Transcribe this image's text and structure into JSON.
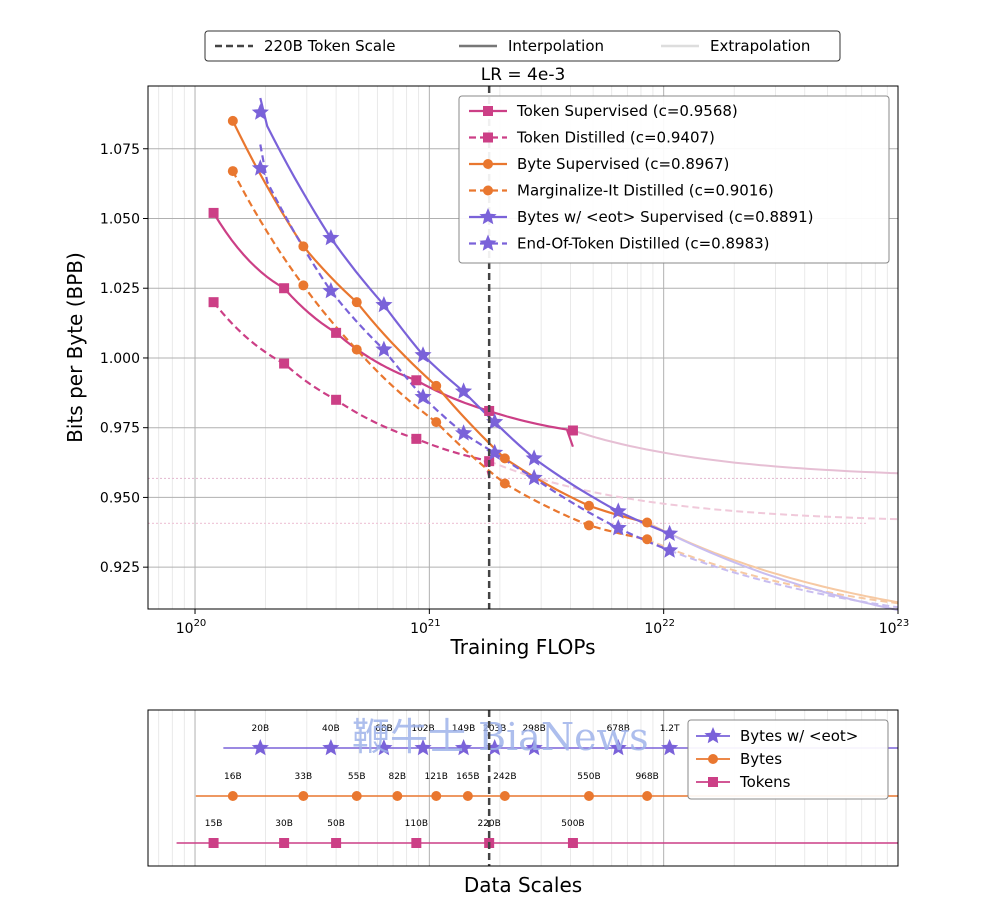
{
  "legend_top": {
    "items": [
      {
        "label": "220B Token Scale",
        "style": "dashed",
        "color": "#444444"
      },
      {
        "label": "Interpolation",
        "style": "solid",
        "color": "#777777"
      },
      {
        "label": "Extrapolation",
        "style": "solid",
        "color": "#dddddd"
      }
    ]
  },
  "watermark": "鞭牛士 BiaNews",
  "chart_data": [
    {
      "type": "line",
      "title": "LR = 4e-3",
      "xlabel": "Training FLOPs",
      "ylabel": "Bits per Byte (BPB)",
      "xscale": "log",
      "xlim": [
        6.3e+19,
        1e+23
      ],
      "ylim": [
        0.91,
        1.0975
      ],
      "xticks": [
        {
          "value": 1e+20,
          "base": "10",
          "exp": "20"
        },
        {
          "value": 1e+21,
          "base": "10",
          "exp": "21"
        },
        {
          "value": 1e+22,
          "base": "10",
          "exp": "22"
        },
        {
          "value": 1e+23,
          "base": "10",
          "exp": "23"
        }
      ],
      "yticks": [
        0.925,
        0.95,
        0.975,
        1.0,
        1.025,
        1.05,
        1.075
      ],
      "ytick_labels": [
        "0.925",
        "0.950",
        "0.975",
        "1.000",
        "1.025",
        "1.050",
        "1.075"
      ],
      "grid": true,
      "legend_position": "top-right",
      "vline_x": 1.8e+21,
      "series": [
        {
          "name": "Token Supervised  (c=0.9568)",
          "color": "#cc3f86",
          "dash": "solid",
          "marker": "square",
          "points": [
            [
              1.2e+20,
              1.052
            ],
            [
              2.4e+20,
              1.025
            ],
            [
              4e+20,
              1.009
            ],
            [
              8.8e+20,
              0.992
            ],
            [
              1.8e+21,
              0.981
            ],
            [
              4.1e+21,
              0.974
            ]
          ],
          "asymptote": 0.9568,
          "curve_exp": 0.72,
          "ext_color": "#e6bfd4"
        },
        {
          "name": "Token Distilled  (c=0.9407)",
          "color": "#cc3f86",
          "dash": "dashed",
          "marker": "square",
          "points": [
            [
              1.2e+20,
              1.02
            ],
            [
              2.4e+20,
              0.998
            ],
            [
              4e+20,
              0.985
            ],
            [
              8.8e+20,
              0.971
            ],
            [
              1.8e+21,
              0.963
            ]
          ],
          "asymptote": 0.9407,
          "curve_exp": 0.68,
          "ext_color": "#f0c9da"
        },
        {
          "name": "Byte Supervised  (c=0.8967)",
          "color": "#e9772f",
          "dash": "solid",
          "marker": "circle",
          "points": [
            [
              1.45e+20,
              1.085
            ],
            [
              2.9e+20,
              1.04
            ],
            [
              4.9e+20,
              1.02
            ],
            [
              1.07e+21,
              0.99
            ],
            [
              2.1e+21,
              0.964
            ],
            [
              4.8e+21,
              0.947
            ],
            [
              8.5e+21,
              0.941
            ]
          ],
          "asymptote": 0.8967,
          "curve_exp": 0.4,
          "ext_color": "#f6c9a3"
        },
        {
          "name": "Marginalize-It Distilled  (c=0.9016)",
          "color": "#e9772f",
          "dash": "dashed",
          "marker": "circle",
          "points": [
            [
              1.45e+20,
              1.067
            ],
            [
              2.9e+20,
              1.026
            ],
            [
              4.9e+20,
              1.003
            ],
            [
              1.07e+21,
              0.977
            ],
            [
              2.1e+21,
              0.955
            ],
            [
              4.8e+21,
              0.94
            ],
            [
              8.5e+21,
              0.935
            ]
          ],
          "asymptote": 0.9016,
          "curve_exp": 0.45,
          "ext_color": "#f6c9a3"
        },
        {
          "name": "Bytes w/ <eot> Supervised  (c=0.8891)",
          "color": "#7a62d9",
          "dash": "solid",
          "marker": "star",
          "points": [
            [
              1.9e+20,
              1.088
            ],
            [
              3.8e+20,
              1.043
            ],
            [
              6.4e+20,
              1.019
            ],
            [
              9.4e+20,
              1.001
            ],
            [
              1.4e+21,
              0.988
            ],
            [
              1.9e+21,
              0.977
            ],
            [
              2.8e+21,
              0.964
            ],
            [
              6.4e+21,
              0.945
            ],
            [
              1.06e+22,
              0.937
            ]
          ],
          "asymptote": 0.8891,
          "curve_exp": 0.37,
          "ext_color": "#c8bdf0"
        },
        {
          "name": "End-Of-Token Distilled  (c=0.8983)",
          "color": "#7a62d9",
          "dash": "dashed",
          "marker": "star",
          "points": [
            [
              1.9e+20,
              1.068
            ],
            [
              3.8e+20,
              1.024
            ],
            [
              6.4e+20,
              1.003
            ],
            [
              9.4e+20,
              0.986
            ],
            [
              1.4e+21,
              0.973
            ],
            [
              1.9e+21,
              0.966
            ],
            [
              2.8e+21,
              0.957
            ],
            [
              6.4e+21,
              0.939
            ],
            [
              1.06e+22,
              0.931
            ]
          ],
          "asymptote": 0.8983,
          "curve_exp": 0.43,
          "ext_color": "#c8bdf0"
        }
      ]
    },
    {
      "type": "scatter",
      "xlabel": "Data Scales",
      "xscale": "log",
      "xlim": [
        6.3e+19,
        1e+23
      ],
      "legend_position": "top-right",
      "vline_x": 1.8e+21,
      "series": [
        {
          "name": "Bytes w/ <eot>",
          "color": "#7a62d9",
          "marker": "star",
          "level": 2,
          "points": [
            {
              "x": 1.9e+20,
              "label": "20B"
            },
            {
              "x": 3.8e+20,
              "label": "40B"
            },
            {
              "x": 6.4e+20,
              "label": "68B"
            },
            {
              "x": 9.4e+20,
              "label": "102B"
            },
            {
              "x": 1.4e+21,
              "label": "149B"
            },
            {
              "x": 1.9e+21,
              "label": "203B"
            },
            {
              "x": 2.8e+21,
              "label": "298B"
            },
            {
              "x": 6.4e+21,
              "label": "678B"
            },
            {
              "x": 1.06e+22,
              "label": "1.2T"
            }
          ]
        },
        {
          "name": "Bytes",
          "color": "#e9772f",
          "marker": "circle",
          "level": 1,
          "points": [
            {
              "x": 1.45e+20,
              "label": "16B"
            },
            {
              "x": 2.9e+20,
              "label": "33B"
            },
            {
              "x": 4.9e+20,
              "label": "55B"
            },
            {
              "x": 7.3e+20,
              "label": "82B"
            },
            {
              "x": 1.07e+21,
              "label": "121B"
            },
            {
              "x": 1.46e+21,
              "label": "165B"
            },
            {
              "x": 2.1e+21,
              "label": "242B"
            },
            {
              "x": 4.8e+21,
              "label": "550B"
            },
            {
              "x": 8.5e+21,
              "label": "968B"
            }
          ]
        },
        {
          "name": "Tokens",
          "color": "#cc3f86",
          "marker": "square",
          "level": 0,
          "points": [
            {
              "x": 1.2e+20,
              "label": "15B"
            },
            {
              "x": 2.4e+20,
              "label": "30B"
            },
            {
              "x": 4e+20,
              "label": "50B"
            },
            {
              "x": 8.8e+20,
              "label": "110B"
            },
            {
              "x": 1.8e+21,
              "label": "220B"
            },
            {
              "x": 4.1e+21,
              "label": "500B"
            }
          ]
        }
      ]
    }
  ]
}
